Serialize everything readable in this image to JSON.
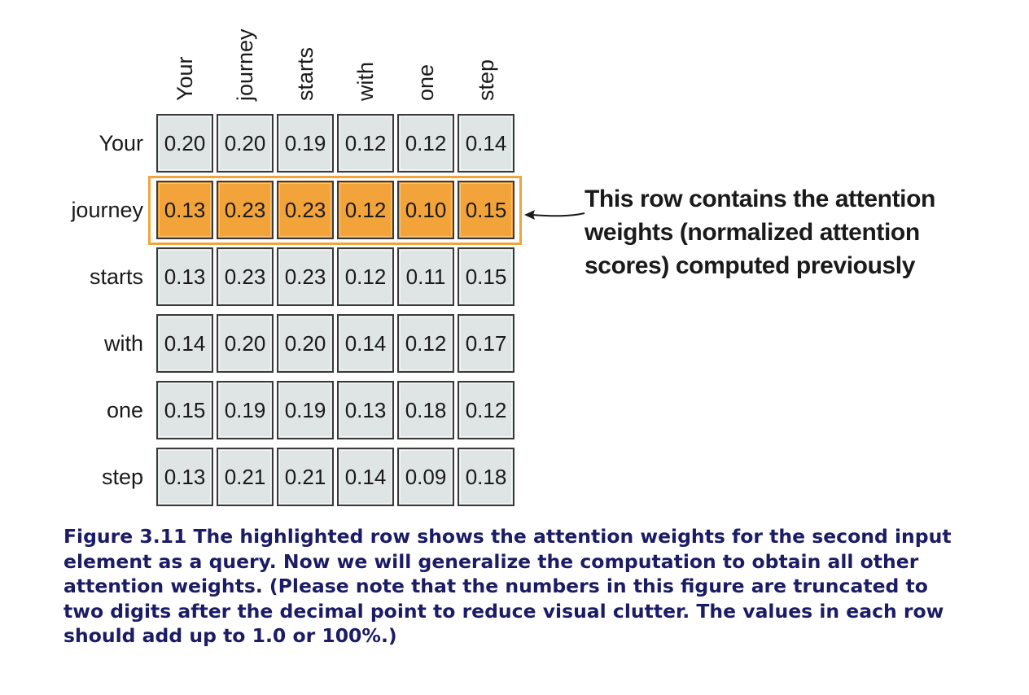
{
  "matrix": {
    "column_labels": [
      "Your",
      "journey",
      "starts",
      "with",
      "one",
      "step"
    ],
    "row_labels": [
      "Your",
      "journey",
      "starts",
      "with",
      "one",
      "step"
    ],
    "values": [
      [
        "0.20",
        "0.20",
        "0.19",
        "0.12",
        "0.12",
        "0.14"
      ],
      [
        "0.13",
        "0.23",
        "0.23",
        "0.12",
        "0.10",
        "0.15"
      ],
      [
        "0.13",
        "0.23",
        "0.23",
        "0.12",
        "0.11",
        "0.15"
      ],
      [
        "0.14",
        "0.20",
        "0.20",
        "0.14",
        "0.12",
        "0.17"
      ],
      [
        "0.15",
        "0.19",
        "0.19",
        "0.13",
        "0.18",
        "0.12"
      ],
      [
        "0.13",
        "0.21",
        "0.21",
        "0.14",
        "0.09",
        "0.18"
      ]
    ],
    "highlighted_row": 1
  },
  "annotation": {
    "lines": [
      "This row contains the attention",
      "weights (normalized attention",
      "scores) computed previously"
    ]
  },
  "caption": {
    "text": "Figure 3.11 The highlighted row shows the attention weights for the second input element as a query. Now we will generalize the computation to obtain all other attention weights. (Please note that the numbers in this figure are truncated to two digits after the decimal point to reduce visual clutter. The values in each row should add up to 1.0 or 100%.)"
  },
  "colors": {
    "highlight": "#f2a43a",
    "cell": "#dfe4e4",
    "caption": "#1b1b66"
  }
}
